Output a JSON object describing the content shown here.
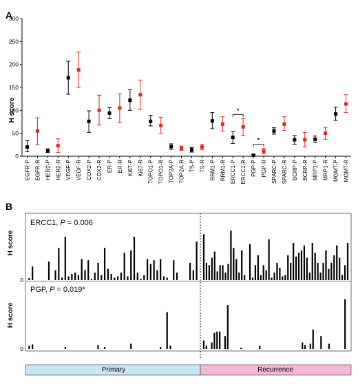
{
  "figure": {
    "panel_a_label": "A",
    "panel_b_label": "B"
  },
  "chart_data": [
    {
      "type": "scatter",
      "panel": "A",
      "ylabel": "H score",
      "ylim": [
        0,
        300
      ],
      "yticks": [
        "0",
        "50",
        "100",
        "150",
        "200",
        "250",
        "300"
      ],
      "grid": false,
      "colors": {
        "primary": "#000000",
        "recurrence": "#e3241f"
      },
      "categories": [
        "EGFR-P",
        "EGFR-R",
        "HER2-P",
        "HER2-R",
        "VEGF-P",
        "VEGF-R",
        "COX2-P",
        "COX2-R",
        "ER-P",
        "ER-R",
        "Ki67-P",
        "Ki67-R",
        "TOPO1-P",
        "TOPO1-R",
        "TOP2A-P",
        "TOP2A-R",
        "TS-P",
        "TS-R",
        "RRM1-P",
        "RRM1-R",
        "ERCC1-P",
        "ERCC1-R",
        "PGP-P",
        "PGP-R",
        "SPARC-P",
        "SPARC-R",
        "BCRP-P",
        "BCRP-R",
        "MRP1-P",
        "MRP1-R",
        "MGMT-P",
        "MGMT-R"
      ],
      "mean": [
        20,
        55,
        12,
        23,
        171,
        188,
        76,
        100,
        94,
        105,
        122,
        134,
        76,
        67,
        21,
        17,
        14,
        20,
        77,
        70,
        41,
        64,
        2,
        11,
        55,
        70,
        36,
        36,
        37,
        50,
        92,
        114
      ],
      "lower": [
        10,
        25,
        8,
        8,
        135,
        150,
        52,
        68,
        82,
        73,
        100,
        102,
        66,
        50,
        15,
        13,
        9,
        14,
        60,
        55,
        28,
        45,
        0,
        5,
        48,
        56,
        26,
        20,
        30,
        37,
        78,
        95
      ],
      "upper": [
        34,
        84,
        16,
        38,
        207,
        227,
        99,
        133,
        106,
        136,
        145,
        166,
        89,
        85,
        27,
        22,
        19,
        26,
        95,
        86,
        54,
        82,
        4,
        17,
        62,
        86,
        45,
        52,
        44,
        63,
        107,
        134
      ],
      "annotations": [
        {
          "text": "*",
          "between": [
            "ERCC1-P",
            "ERCC1-R"
          ]
        },
        {
          "text": "*",
          "between": [
            "PGP-P",
            "PGP-R"
          ]
        }
      ]
    },
    {
      "type": "bar",
      "panel": "B",
      "ylabel": "H score",
      "groups": [
        {
          "label": "Primary",
          "color": "#c9e6f4"
        },
        {
          "label": "Recurrence",
          "color": "#f3b8d6"
        }
      ],
      "subcharts": [
        {
          "label": "ERCC1, ",
          "p_label": "P",
          "p_value": " = 0.006",
          "ylim": [
            0,
            200
          ],
          "primary": [
            8,
            55,
            0,
            0,
            0,
            0,
            75,
            0,
            40,
            130,
            10,
            175,
            15,
            25,
            30,
            20,
            85,
            40,
            80,
            5,
            30,
            70,
            20,
            130,
            45,
            25,
            10,
            15,
            30,
            110,
            15,
            120,
            175,
            30,
            5,
            20,
            85,
            65,
            80,
            40,
            85,
            15,
            10,
            0,
            80,
            30,
            0,
            0,
            0,
            70,
            40,
            155
          ],
          "recurrence": [
            185,
            70,
            60,
            90,
            115,
            35,
            60,
            60,
            30,
            65,
            200,
            130,
            85,
            30,
            120,
            20,
            0,
            145,
            10,
            60,
            100,
            20,
            60,
            40,
            165,
            10,
            30,
            70,
            50,
            15,
            20,
            100,
            70,
            150,
            95,
            110,
            120,
            140,
            90,
            30,
            150,
            110,
            70,
            30,
            70,
            120,
            45,
            70,
            100,
            140,
            90,
            20,
            60,
            150
          ]
        },
        {
          "label": "PGP, ",
          "p_label": "P",
          "p_value": " = 0.019*",
          "ylim": [
            0,
            80
          ],
          "primary": [
            5,
            7,
            0,
            0,
            0,
            0,
            0,
            0,
            0,
            0,
            0,
            3,
            0,
            0,
            0,
            0,
            0,
            0,
            0,
            0,
            0,
            6,
            0,
            3,
            0,
            0,
            0,
            0,
            0,
            0,
            0,
            8,
            0,
            0,
            0,
            0,
            0,
            0,
            0,
            0,
            3,
            0,
            57,
            5,
            0,
            0,
            0,
            0,
            0,
            0,
            0,
            0
          ],
          "recurrence": [
            13,
            5,
            0,
            10,
            25,
            27,
            27,
            0,
            20,
            68,
            0,
            0,
            0,
            0,
            2,
            0,
            0,
            0,
            0,
            0,
            0,
            5,
            0,
            0,
            0,
            0,
            0,
            0,
            0,
            0,
            0,
            0,
            0,
            0,
            0,
            0,
            0,
            10,
            6,
            0,
            8,
            30,
            0,
            0,
            20,
            0,
            0,
            8,
            0,
            0,
            0,
            0,
            0,
            77,
            0
          ]
        }
      ]
    }
  ]
}
